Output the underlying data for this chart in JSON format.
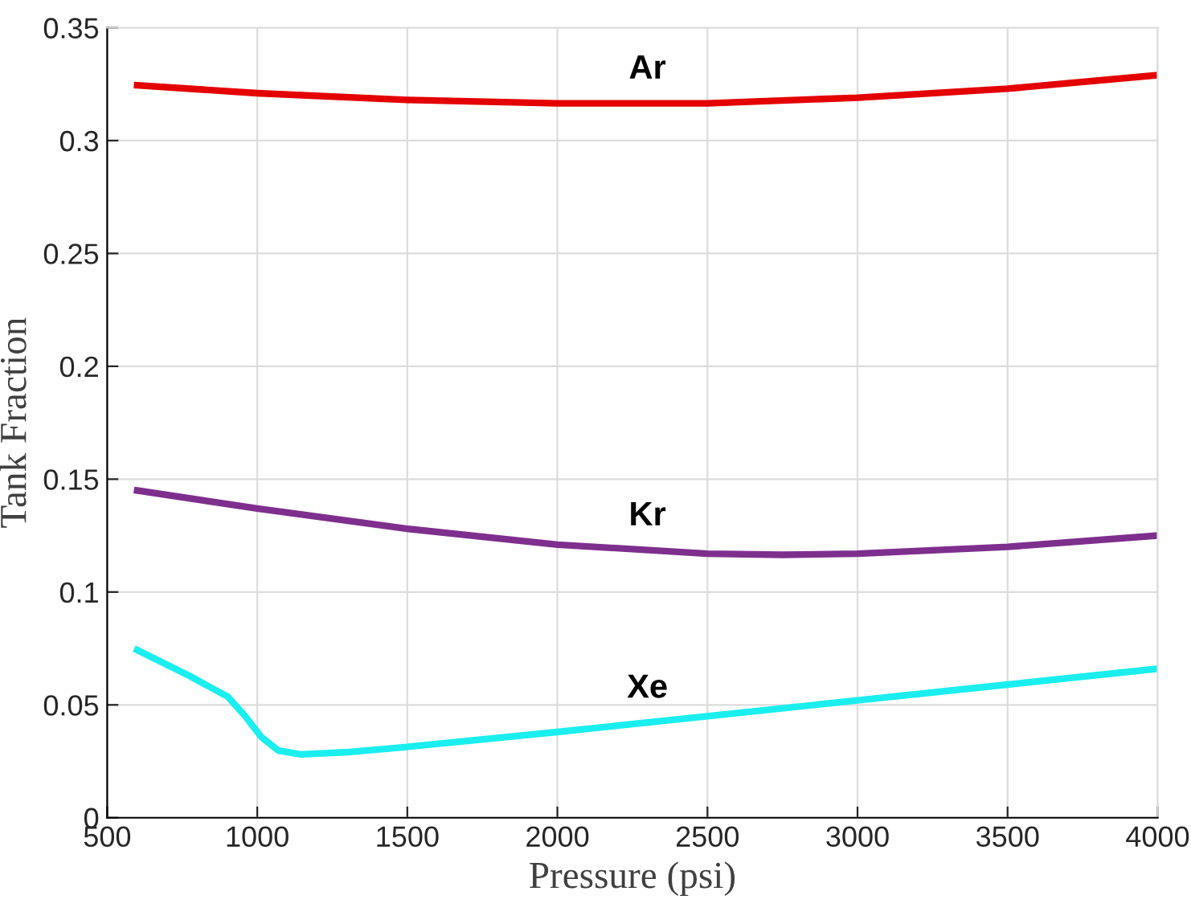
{
  "chart_data": {
    "type": "line",
    "xlabel": "Pressure (psi)",
    "ylabel": "Tank Fraction",
    "xlim": [
      500,
      4000
    ],
    "xticks": [
      500,
      1000,
      1500,
      2000,
      2500,
      3000,
      3500,
      4000
    ],
    "ylim": [
      0,
      0.35
    ],
    "yticks": [
      0,
      0.05,
      0.1,
      0.15,
      0.2,
      0.25,
      0.3,
      0.35
    ],
    "grid": true,
    "legend": false,
    "marker": "none",
    "line_style": "solid",
    "series": [
      {
        "name": "Ar",
        "color": "#e50000",
        "x": [
          600,
          1000,
          1500,
          2000,
          2500,
          3000,
          3500,
          4000
        ],
        "values": [
          0.3245,
          0.321,
          0.318,
          0.3165,
          0.3165,
          0.319,
          0.323,
          0.329
        ]
      },
      {
        "name": "Kr",
        "color": "#7e2f8e",
        "x": [
          600,
          1000,
          1500,
          2000,
          2500,
          2750,
          3000,
          3500,
          4000
        ],
        "values": [
          0.145,
          0.137,
          0.128,
          0.121,
          0.117,
          0.1165,
          0.117,
          0.12,
          0.125
        ]
      },
      {
        "name": "Xe",
        "color": "#1aeeee",
        "x": [
          600,
          772,
          902,
          958,
          1014,
          1070,
          1145,
          1294,
          1500,
          2000,
          2500,
          3000,
          3500,
          4000
        ],
        "values": [
          0.0743,
          0.063,
          0.0536,
          0.0453,
          0.0357,
          0.0298,
          0.0281,
          0.029,
          0.0314,
          0.038,
          0.045,
          0.052,
          0.059,
          0.066
        ]
      }
    ]
  }
}
